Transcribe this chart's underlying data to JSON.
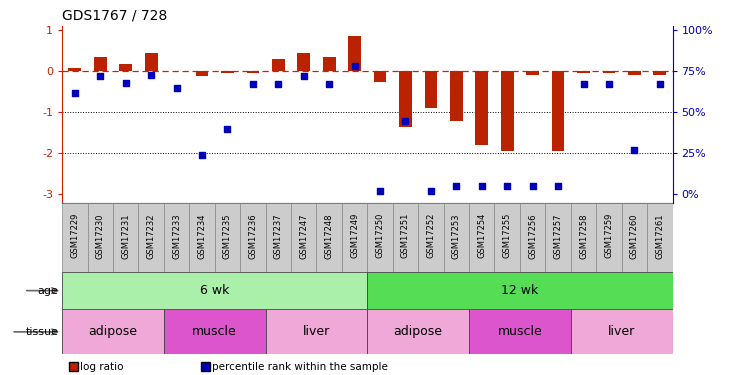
{
  "title": "GDS1767 / 728",
  "samples": [
    "GSM17229",
    "GSM17230",
    "GSM17231",
    "GSM17232",
    "GSM17233",
    "GSM17234",
    "GSM17235",
    "GSM17236",
    "GSM17237",
    "GSM17247",
    "GSM17248",
    "GSM17249",
    "GSM17250",
    "GSM17251",
    "GSM17252",
    "GSM17253",
    "GSM17254",
    "GSM17255",
    "GSM17256",
    "GSM17257",
    "GSM17258",
    "GSM17259",
    "GSM17260",
    "GSM17261"
  ],
  "log_ratio": [
    0.07,
    0.35,
    0.18,
    0.45,
    0.02,
    -0.12,
    -0.04,
    -0.05,
    0.3,
    0.45,
    0.35,
    0.85,
    -0.25,
    -1.35,
    -0.9,
    -1.2,
    -1.8,
    -1.95,
    -0.08,
    -1.95,
    -0.05,
    -0.05,
    -0.08,
    -0.1
  ],
  "percentile_rank": [
    62,
    72,
    68,
    73,
    65,
    24,
    40,
    67,
    67,
    72,
    67,
    78,
    2,
    45,
    2,
    5,
    5,
    5,
    5,
    5,
    67,
    67,
    27,
    67
  ],
  "bar_color": "#bb2200",
  "dot_color": "#0000bb",
  "dashed_line_color": "#cc2200",
  "ylim": [
    -3.2,
    1.1
  ],
  "yticks_left": [
    1,
    0,
    -1,
    -2,
    -3
  ],
  "yticks_right_vals": [
    100,
    75,
    50,
    25,
    0
  ],
  "yticks_right_pos": [
    1.0,
    0.0,
    -1.0,
    -2.0,
    -3.0
  ],
  "hline_y": 0.0,
  "dotted_lines": [
    -1.0,
    -2.0
  ],
  "age_groups": [
    {
      "label": "6 wk",
      "start": 0,
      "end": 11,
      "color": "#aaf0aa"
    },
    {
      "label": "12 wk",
      "start": 12,
      "end": 23,
      "color": "#55dd55"
    }
  ],
  "tissue_groups": [
    {
      "label": "adipose",
      "start": 0,
      "end": 3,
      "color": "#f0a8d8"
    },
    {
      "label": "muscle",
      "start": 4,
      "end": 7,
      "color": "#dd55cc"
    },
    {
      "label": "liver",
      "start": 8,
      "end": 11,
      "color": "#f0a8d8"
    },
    {
      "label": "adipose",
      "start": 12,
      "end": 15,
      "color": "#f0a8d8"
    },
    {
      "label": "muscle",
      "start": 16,
      "end": 19,
      "color": "#dd55cc"
    },
    {
      "label": "liver",
      "start": 20,
      "end": 23,
      "color": "#f0a8d8"
    }
  ],
  "legend_items": [
    {
      "label": "log ratio",
      "color": "#bb2200"
    },
    {
      "label": "percentile rank within the sample",
      "color": "#0000bb"
    }
  ],
  "bg_color": "#ffffff",
  "bar_width": 0.5,
  "sample_box_color": "#cccccc",
  "sample_box_edge": "#888888"
}
